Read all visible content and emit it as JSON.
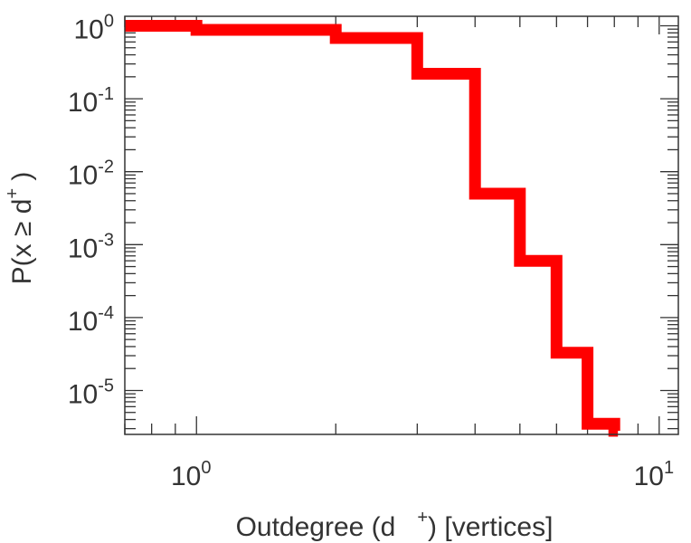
{
  "chart_data": {
    "type": "line",
    "style": "step",
    "xscale": "log",
    "yscale": "log",
    "xlabel": "Outdegree (d + ) [vertices]",
    "xlabel_parts": {
      "before": "Outdegree (d",
      "sup": "+",
      "after": ") [vertices]"
    },
    "ylabel": "P(x ≥ d+ )",
    "ylabel_parts": {
      "before": "P(x ≥ d",
      "sup": "+",
      "after": " )"
    },
    "xlim": [
      0.7,
      11
    ],
    "ylim": [
      2.5e-06,
      1.35
    ],
    "x_ticks": [
      {
        "value": 1,
        "base": "10",
        "exp": "0"
      },
      {
        "value": 10,
        "base": "10",
        "exp": "1"
      }
    ],
    "y_ticks": [
      {
        "value": 1,
        "base": "10",
        "exp": "0"
      },
      {
        "value": 0.1,
        "base": "10",
        "exp": "-1"
      },
      {
        "value": 0.01,
        "base": "10",
        "exp": "-2"
      },
      {
        "value": 0.001,
        "base": "10",
        "exp": "-3"
      },
      {
        "value": 0.0001,
        "base": "10",
        "exp": "-4"
      },
      {
        "value": 1e-05,
        "base": "10",
        "exp": "-5"
      }
    ],
    "grid": false,
    "series": [
      {
        "color": "#ff0000",
        "x": [
          0.7,
          1,
          2,
          3,
          4,
          5,
          6,
          7,
          8
        ],
        "y": [
          1.0,
          0.88,
          0.68,
          0.22,
          0.005,
          0.0006,
          3.3e-05,
          3.5e-06,
          2.8e-06
        ]
      }
    ]
  }
}
